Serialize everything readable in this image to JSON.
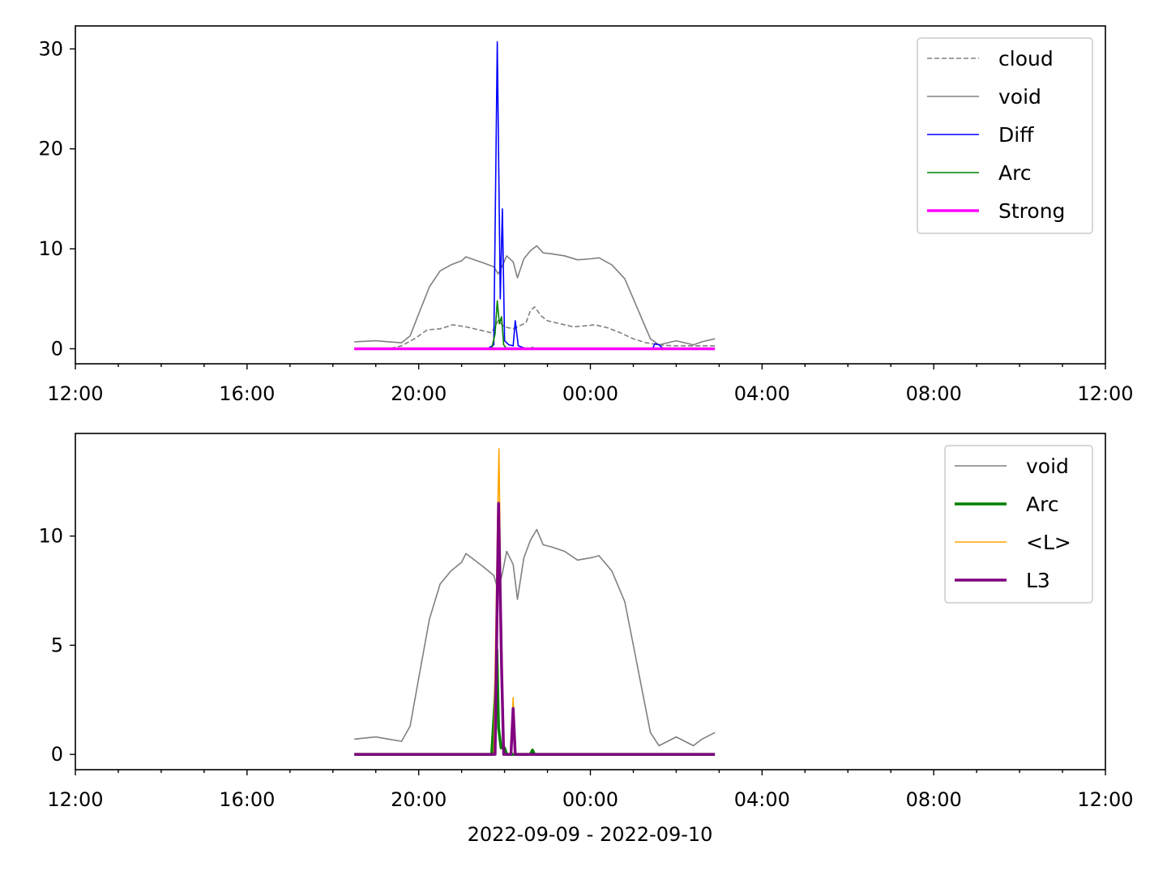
{
  "chart_data": [
    {
      "type": "line",
      "xlabel": "",
      "ylabel": "",
      "xlim": [
        "12:00",
        "12:00 (+1d)"
      ],
      "ylim": [
        -1.5,
        32.3
      ],
      "grid": false,
      "legend_position": "top-right",
      "x_ticks": [
        "12:00",
        "16:00",
        "20:00",
        "00:00",
        "04:00",
        "08:00",
        "12:00"
      ],
      "y_ticks": [
        "0",
        "10",
        "20",
        "30"
      ],
      "series": [
        {
          "name": "cloud",
          "color": "#808080",
          "style": "dashed",
          "points": [
            [
              18.5,
              0
            ],
            [
              19.3,
              0
            ],
            [
              19.6,
              0.3
            ],
            [
              19.9,
              1.0
            ],
            [
              20.2,
              1.9
            ],
            [
              20.5,
              2.0
            ],
            [
              20.8,
              2.4
            ],
            [
              21.1,
              2.2
            ],
            [
              21.4,
              1.9
            ],
            [
              21.7,
              1.6
            ],
            [
              21.85,
              2.8
            ],
            [
              22.0,
              2.2
            ],
            [
              22.2,
              2.0
            ],
            [
              22.5,
              2.6
            ],
            [
              22.6,
              3.8
            ],
            [
              22.7,
              4.2
            ],
            [
              22.85,
              3.3
            ],
            [
              23.0,
              2.8
            ],
            [
              23.3,
              2.5
            ],
            [
              23.6,
              2.2
            ],
            [
              23.9,
              2.3
            ],
            [
              24.1,
              2.4
            ],
            [
              24.4,
              2.1
            ],
            [
              24.7,
              1.6
            ],
            [
              25.0,
              1.0
            ],
            [
              25.3,
              0.6
            ],
            [
              25.6,
              0.4
            ],
            [
              25.9,
              0.3
            ],
            [
              26.9,
              0.3
            ]
          ]
        },
        {
          "name": "void",
          "color": "#808080",
          "style": "solid",
          "points": [
            [
              18.5,
              0.7
            ],
            [
              19.0,
              0.8
            ],
            [
              19.3,
              0.7
            ],
            [
              19.6,
              0.6
            ],
            [
              19.8,
              1.3
            ],
            [
              20.0,
              3.5
            ],
            [
              20.25,
              6.2
            ],
            [
              20.5,
              7.8
            ],
            [
              20.75,
              8.4
            ],
            [
              21.0,
              8.8
            ],
            [
              21.1,
              9.2
            ],
            [
              21.3,
              8.9
            ],
            [
              21.5,
              8.6
            ],
            [
              21.75,
              8.2
            ],
            [
              21.85,
              7.5
            ],
            [
              21.95,
              8.3
            ],
            [
              22.05,
              9.3
            ],
            [
              22.2,
              8.7
            ],
            [
              22.3,
              7.1
            ],
            [
              22.45,
              9.0
            ],
            [
              22.6,
              9.8
            ],
            [
              22.75,
              10.3
            ],
            [
              22.9,
              9.6
            ],
            [
              23.1,
              9.5
            ],
            [
              23.4,
              9.3
            ],
            [
              23.7,
              8.9
            ],
            [
              24.0,
              9.0
            ],
            [
              24.2,
              9.1
            ],
            [
              24.5,
              8.4
            ],
            [
              24.8,
              7.0
            ],
            [
              25.0,
              5.0
            ],
            [
              25.2,
              3.0
            ],
            [
              25.4,
              1.0
            ],
            [
              25.6,
              0.4
            ],
            [
              25.8,
              0.6
            ],
            [
              26.0,
              0.8
            ],
            [
              26.2,
              0.6
            ],
            [
              26.4,
              0.4
            ],
            [
              26.6,
              0.7
            ],
            [
              26.9,
              1.0
            ]
          ]
        },
        {
          "name": "Diff",
          "color": "#0000ff",
          "style": "solid",
          "points": [
            [
              18.5,
              0
            ],
            [
              21.6,
              0
            ],
            [
              21.75,
              0.4
            ],
            [
              21.83,
              30.7
            ],
            [
              21.9,
              5.0
            ],
            [
              21.95,
              14.0
            ],
            [
              22.0,
              0.8
            ],
            [
              22.1,
              0.4
            ],
            [
              22.2,
              0.3
            ],
            [
              22.25,
              2.8
            ],
            [
              22.32,
              0.3
            ],
            [
              22.5,
              0
            ],
            [
              25.45,
              0
            ],
            [
              25.5,
              0.5
            ],
            [
              25.6,
              0.4
            ],
            [
              25.7,
              0
            ],
            [
              26.9,
              0
            ]
          ]
        },
        {
          "name": "Arc",
          "color": "#008000",
          "style": "solid",
          "points": [
            [
              18.5,
              0
            ],
            [
              21.7,
              0
            ],
            [
              21.78,
              1.5
            ],
            [
              21.83,
              4.8
            ],
            [
              21.88,
              2.5
            ],
            [
              21.93,
              3.2
            ],
            [
              21.98,
              0.4
            ],
            [
              22.05,
              0
            ],
            [
              22.6,
              0
            ],
            [
              22.65,
              0.15
            ],
            [
              22.7,
              0
            ],
            [
              26.9,
              0
            ]
          ]
        },
        {
          "name": "Strong",
          "color": "#ff00ff",
          "style": "solid",
          "points": [
            [
              18.5,
              0
            ],
            [
              26.9,
              0
            ]
          ]
        }
      ]
    },
    {
      "type": "line",
      "xlabel": "2022-09-09 - 2022-09-10",
      "ylabel": "",
      "xlim": [
        "12:00",
        "12:00 (+1d)"
      ],
      "ylim": [
        -0.7,
        14.7
      ],
      "grid": false,
      "legend_position": "top-right",
      "x_ticks": [
        "12:00",
        "16:00",
        "20:00",
        "00:00",
        "04:00",
        "08:00",
        "12:00"
      ],
      "y_ticks": [
        "0",
        "5",
        "10"
      ],
      "series": [
        {
          "name": "void",
          "color": "#808080",
          "style": "solid",
          "points": [
            [
              18.5,
              0.7
            ],
            [
              19.0,
              0.8
            ],
            [
              19.3,
              0.7
            ],
            [
              19.6,
              0.6
            ],
            [
              19.8,
              1.3
            ],
            [
              20.0,
              3.5
            ],
            [
              20.25,
              6.2
            ],
            [
              20.5,
              7.8
            ],
            [
              20.75,
              8.4
            ],
            [
              21.0,
              8.8
            ],
            [
              21.1,
              9.2
            ],
            [
              21.3,
              8.9
            ],
            [
              21.5,
              8.6
            ],
            [
              21.75,
              8.2
            ],
            [
              21.85,
              7.5
            ],
            [
              21.95,
              8.3
            ],
            [
              22.05,
              9.3
            ],
            [
              22.2,
              8.7
            ],
            [
              22.3,
              7.1
            ],
            [
              22.45,
              9.0
            ],
            [
              22.6,
              9.8
            ],
            [
              22.75,
              10.3
            ],
            [
              22.9,
              9.6
            ],
            [
              23.1,
              9.5
            ],
            [
              23.4,
              9.3
            ],
            [
              23.7,
              8.9
            ],
            [
              24.0,
              9.0
            ],
            [
              24.2,
              9.1
            ],
            [
              24.5,
              8.4
            ],
            [
              24.8,
              7.0
            ],
            [
              25.0,
              5.0
            ],
            [
              25.2,
              3.0
            ],
            [
              25.4,
              1.0
            ],
            [
              25.6,
              0.4
            ],
            [
              25.8,
              0.6
            ],
            [
              26.0,
              0.8
            ],
            [
              26.2,
              0.6
            ],
            [
              26.4,
              0.4
            ],
            [
              26.6,
              0.7
            ],
            [
              26.9,
              1.0
            ]
          ]
        },
        {
          "name": "Arc",
          "color": "#008000",
          "style": "thick",
          "points": [
            [
              18.5,
              0
            ],
            [
              21.7,
              0
            ],
            [
              21.78,
              2.6
            ],
            [
              21.82,
              4.8
            ],
            [
              21.86,
              1.2
            ],
            [
              21.92,
              0.3
            ],
            [
              22.0,
              0.3
            ],
            [
              22.05,
              0
            ],
            [
              22.6,
              0
            ],
            [
              22.65,
              0.2
            ],
            [
              22.7,
              0
            ],
            [
              26.9,
              0
            ]
          ]
        },
        {
          "name": "<L>",
          "color": "#ffa500",
          "style": "solid",
          "points": [
            [
              18.5,
              0
            ],
            [
              21.75,
              0
            ],
            [
              21.84,
              11.0
            ],
            [
              21.87,
              14.0
            ],
            [
              21.92,
              6.0
            ],
            [
              21.97,
              0
            ],
            [
              22.15,
              0
            ],
            [
              22.2,
              2.6
            ],
            [
              22.25,
              0
            ],
            [
              26.9,
              0
            ]
          ]
        },
        {
          "name": "L3",
          "color": "#800080",
          "style": "thick",
          "points": [
            [
              18.5,
              0
            ],
            [
              21.78,
              0
            ],
            [
              21.86,
              11.5
            ],
            [
              21.93,
              4.0
            ],
            [
              21.98,
              0
            ],
            [
              22.15,
              0
            ],
            [
              22.2,
              2.1
            ],
            [
              22.25,
              0
            ],
            [
              26.9,
              0
            ]
          ]
        }
      ]
    }
  ]
}
